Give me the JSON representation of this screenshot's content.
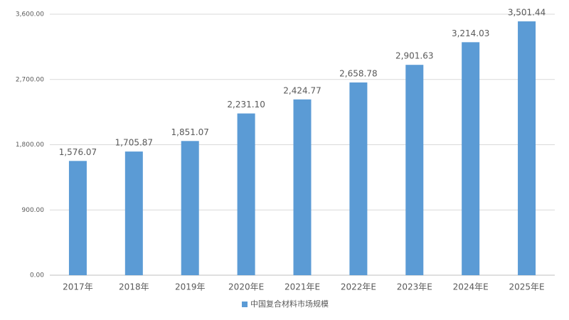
{
  "chart_data": {
    "type": "bar",
    "categories": [
      "2017年",
      "2018年",
      "2019年",
      "2020年E",
      "2021年E",
      "2022年E",
      "2023年E",
      "2024年E",
      "2025年E"
    ],
    "series": [
      {
        "name": "中国复合材料市场规模",
        "color": "#5b9bd5",
        "values": [
          1576.07,
          1705.87,
          1851.07,
          2231.1,
          2424.77,
          2658.78,
          2901.63,
          3214.03,
          3501.44
        ],
        "value_labels": [
          "1,576.07",
          "1,705.87",
          "1,851.07",
          "2,231.10",
          "2,424.77",
          "2,658.78",
          "2,901.63",
          "3,214.03",
          "3,501.44"
        ]
      }
    ],
    "ylim": [
      0,
      3600
    ],
    "yticks": [
      {
        "value": 0,
        "label": "0.00"
      },
      {
        "value": 900,
        "label": "900.00"
      },
      {
        "value": 1800,
        "label": "1,800.00"
      },
      {
        "value": 2700,
        "label": "2,700.00"
      },
      {
        "value": 3600,
        "label": "3,600.00"
      }
    ],
    "grid": true,
    "legend": "bottom"
  }
}
